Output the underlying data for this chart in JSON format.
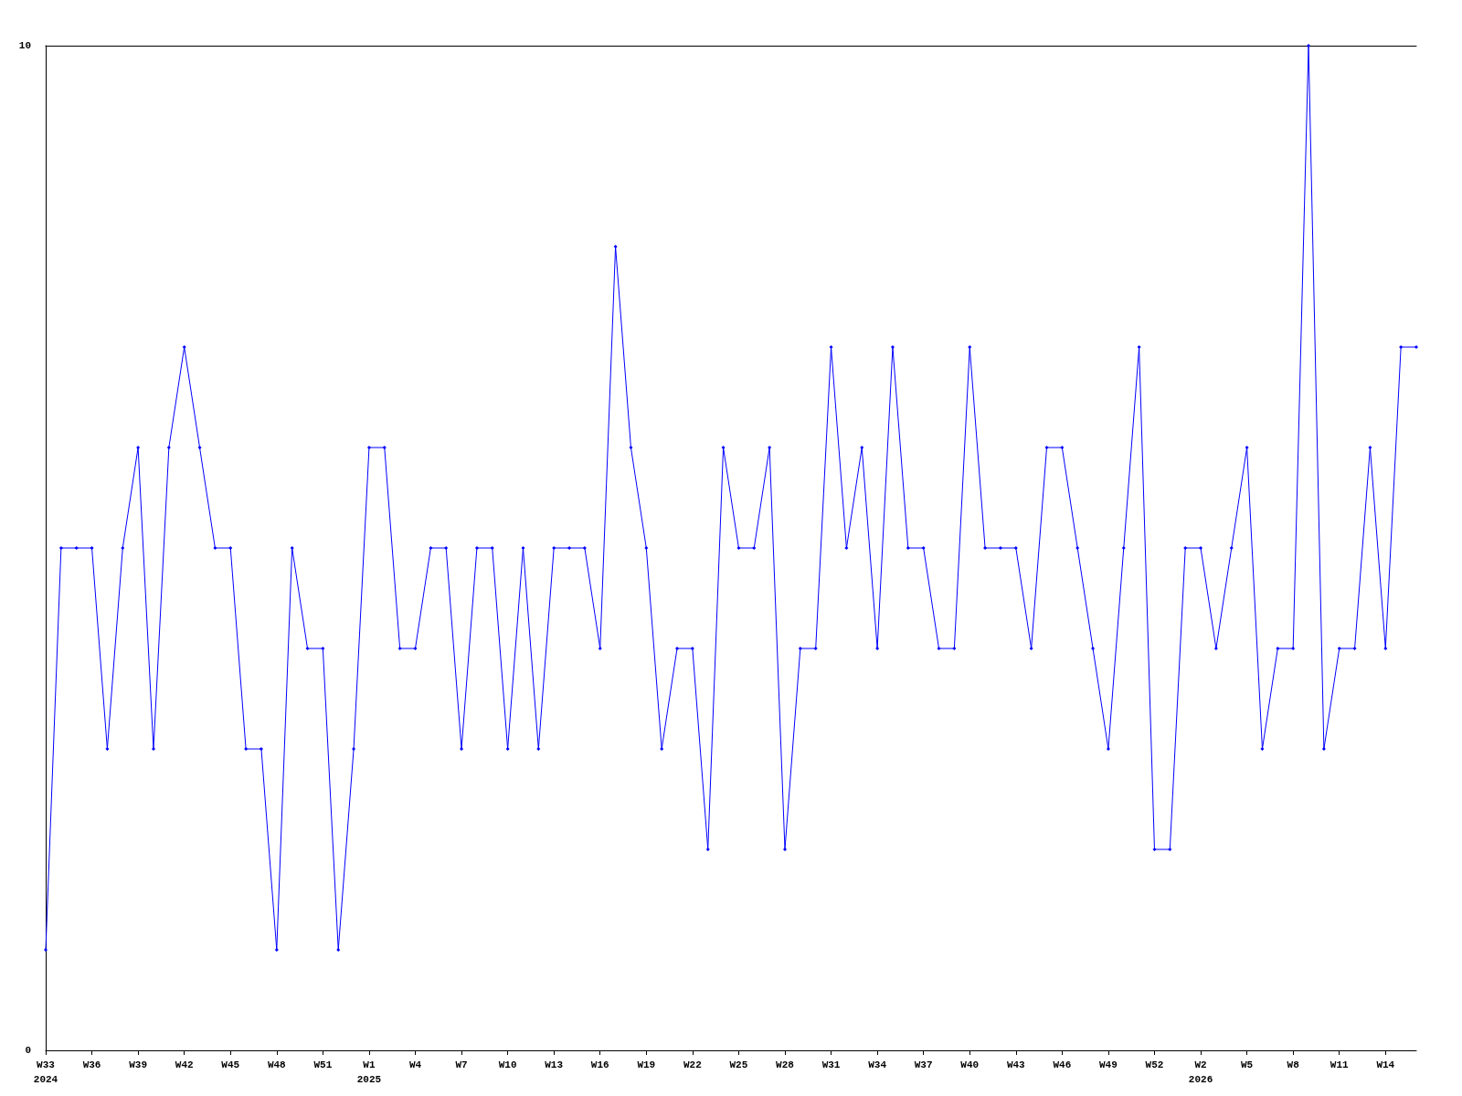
{
  "chart_data": {
    "type": "line",
    "categories": [
      "W33\n2024",
      null,
      null,
      "W36",
      null,
      null,
      "W39",
      null,
      null,
      "W42",
      null,
      null,
      "W45",
      null,
      null,
      "W48",
      null,
      null,
      "W51",
      null,
      null,
      "W1\n2025",
      null,
      null,
      "W4",
      null,
      null,
      "W7",
      null,
      null,
      "W10",
      null,
      null,
      "W13",
      null,
      null,
      "W16",
      null,
      null,
      "W19",
      null,
      null,
      "W22",
      null,
      null,
      "W25",
      null,
      null,
      "W28",
      null,
      null,
      "W31",
      null,
      null,
      "W34",
      null,
      null,
      "W37",
      null,
      null,
      "W40",
      null,
      null,
      "W43",
      null,
      null,
      "W46",
      null,
      null,
      "W49",
      null,
      null,
      "W52",
      null,
      null,
      "W2\n2026",
      null,
      null,
      "W5",
      null,
      null,
      "W8",
      null,
      null,
      "W11",
      null,
      null,
      "W14",
      null,
      null
    ],
    "series": [
      {
        "color": "#0000ff",
        "values": [
          1,
          5,
          5,
          5,
          3,
          5,
          6,
          3,
          6,
          7,
          6,
          5,
          5,
          3,
          3,
          1,
          5,
          4,
          4,
          1,
          3,
          6,
          6,
          4,
          4,
          5,
          5,
          3,
          5,
          5,
          3,
          5,
          3,
          5,
          5,
          5,
          4,
          8,
          6,
          5,
          3,
          4,
          4,
          2,
          6,
          5,
          5,
          6,
          2,
          4,
          4,
          7,
          5,
          6,
          4,
          7,
          5,
          5,
          4,
          4,
          7,
          5,
          5,
          5,
          4,
          6,
          6,
          5,
          4,
          3,
          5,
          7,
          2,
          2,
          5,
          5,
          4,
          5,
          6,
          3,
          4,
          4,
          10,
          3,
          4,
          4,
          6,
          4,
          7,
          7
        ]
      }
    ],
    "ylim": [
      0,
      10
    ],
    "yticks": [
      0,
      10
    ],
    "grid": false,
    "marker": "diamond",
    "line_style": "solid"
  }
}
